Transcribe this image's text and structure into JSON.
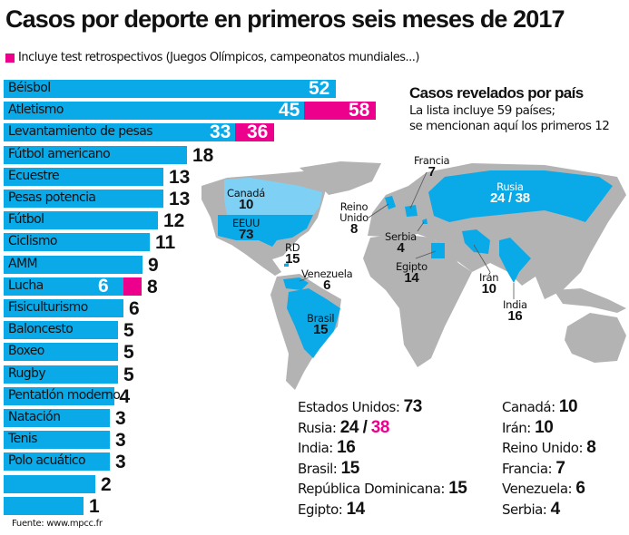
{
  "chart_data": [
    {
      "type": "bar",
      "orientation": "horizontal",
      "title": "Casos por deporte en primeros seis meses de 2017",
      "legend": [
        {
          "label": "Incluye test retrospectivos (Juegos Olímpicos, campeonatos mundiales...)",
          "color": "#ec008c"
        }
      ],
      "categories": [
        "Béisbol",
        "Atletismo",
        "Levantamiento de pesas",
        "Fútbol americano",
        "Ecuestre",
        "Pesas potencia",
        "Fútbol",
        "Ciclismo",
        "AMM",
        "Lucha",
        "Fisiculturismo",
        "Baloncesto",
        "Boxeo",
        "Rugby",
        "Pentatlón moderno",
        "Natación",
        "Tenis",
        "Polo acuático",
        "",
        ""
      ],
      "values": [
        52,
        45,
        33,
        18,
        13,
        13,
        12,
        11,
        9,
        6,
        6,
        5,
        5,
        5,
        4,
        3,
        3,
        3,
        2,
        1
      ],
      "totals_with_retrospective": [
        null,
        58,
        36,
        null,
        null,
        null,
        null,
        null,
        null,
        8,
        null,
        null,
        null,
        null,
        null,
        null,
        null,
        null,
        null,
        null
      ],
      "colors": {
        "base": "#0aa9e8",
        "retrospective": "#ec008c"
      },
      "source": "Fuente: www.mpcc.fr"
    },
    {
      "type": "map",
      "title": "Casos revelados por país",
      "subtitle": [
        "La lista incluye 59 países;",
        "se mencionan aquí los primeros 12"
      ],
      "map_labels": [
        {
          "name": "Canadá",
          "value": "10"
        },
        {
          "name": "EEUU",
          "value": "73"
        },
        {
          "name": "RD",
          "value": "15"
        },
        {
          "name": "Venezuela",
          "value": "6"
        },
        {
          "name": "Brasil",
          "value": "15"
        },
        {
          "name": "Reino Unido",
          "value": "8"
        },
        {
          "name": "Francia",
          "value": "7"
        },
        {
          "name": "Serbia",
          "value": "4"
        },
        {
          "name": "Egipto",
          "value": "14"
        },
        {
          "name": "Irán",
          "value": "10"
        },
        {
          "name": "India",
          "value": "16"
        },
        {
          "name": "Rusia",
          "value": "24 / 38"
        }
      ],
      "list_left": [
        {
          "name": "Estados Unidos:",
          "value": "73"
        },
        {
          "name": "Rusia:",
          "value": "24 /",
          "value_retro": "38"
        },
        {
          "name": "India:",
          "value": "16"
        },
        {
          "name": "Brasil:",
          "value": "15"
        },
        {
          "name": "República Dominicana:",
          "value": "15"
        },
        {
          "name": "Egipto:",
          "value": "14"
        }
      ],
      "list_right": [
        {
          "name": "Canadá:",
          "value": "10"
        },
        {
          "name": "Irán:",
          "value": "10"
        },
        {
          "name": "Reino Unido:",
          "value": "8"
        },
        {
          "name": "Francia:",
          "value": "7"
        },
        {
          "name": "Venezuela:",
          "value": "6"
        },
        {
          "name": "Serbia:",
          "value": "4"
        }
      ],
      "colors": {
        "highlight": "#0aa9e8",
        "canada": "#7fd0f5",
        "land": "#b3b3b3"
      }
    }
  ]
}
